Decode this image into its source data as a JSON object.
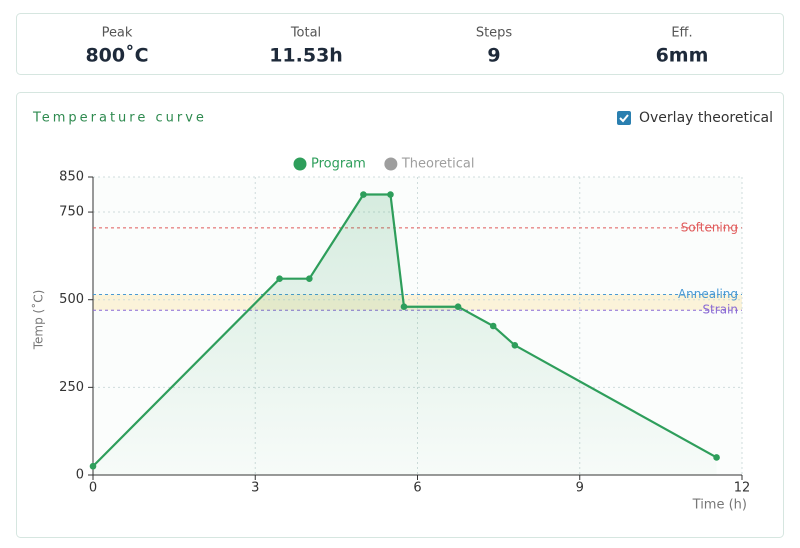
{
  "stats": [
    {
      "label": "Peak",
      "value": "800˚C"
    },
    {
      "label": "Total",
      "value": "11.53h"
    },
    {
      "label": "Steps",
      "value": "9"
    },
    {
      "label": "Eff.",
      "value": "6mm"
    }
  ],
  "panel": {
    "title": "Temperature curve",
    "overlay_label": "Overlay theoretical",
    "overlay_checked": true
  },
  "chart_data": {
    "type": "line",
    "x_label": "Time (h)",
    "y_label": "Temp (˚C)",
    "x": [
      0,
      3.45,
      4,
      5,
      5.5,
      5.75,
      6.75,
      7.4,
      7.8,
      11.53
    ],
    "series": [
      {
        "name": "Program",
        "color": "#2e9e5b",
        "values": [
          25,
          560,
          560,
          800,
          800,
          480,
          480,
          425,
          370,
          50
        ]
      }
    ],
    "legend_items": [
      {
        "name": "Program",
        "color": "#2e9e5b"
      },
      {
        "name": "Theoretical",
        "color": "#9e9e9e"
      }
    ],
    "reference_lines": [
      {
        "label": "Softening",
        "value": 705,
        "color": "#e05a5a"
      },
      {
        "label": "Annealing",
        "value": 515,
        "color": "#4a9ad4"
      },
      {
        "label": "Strain",
        "value": 470,
        "color": "#8a6ad4"
      }
    ],
    "xlim": [
      0,
      12
    ],
    "xticks": [
      0,
      3,
      6,
      9,
      12
    ],
    "ylim": [
      0,
      850
    ],
    "yticks": [
      0,
      250,
      500,
      750,
      850
    ],
    "grid": true
  }
}
